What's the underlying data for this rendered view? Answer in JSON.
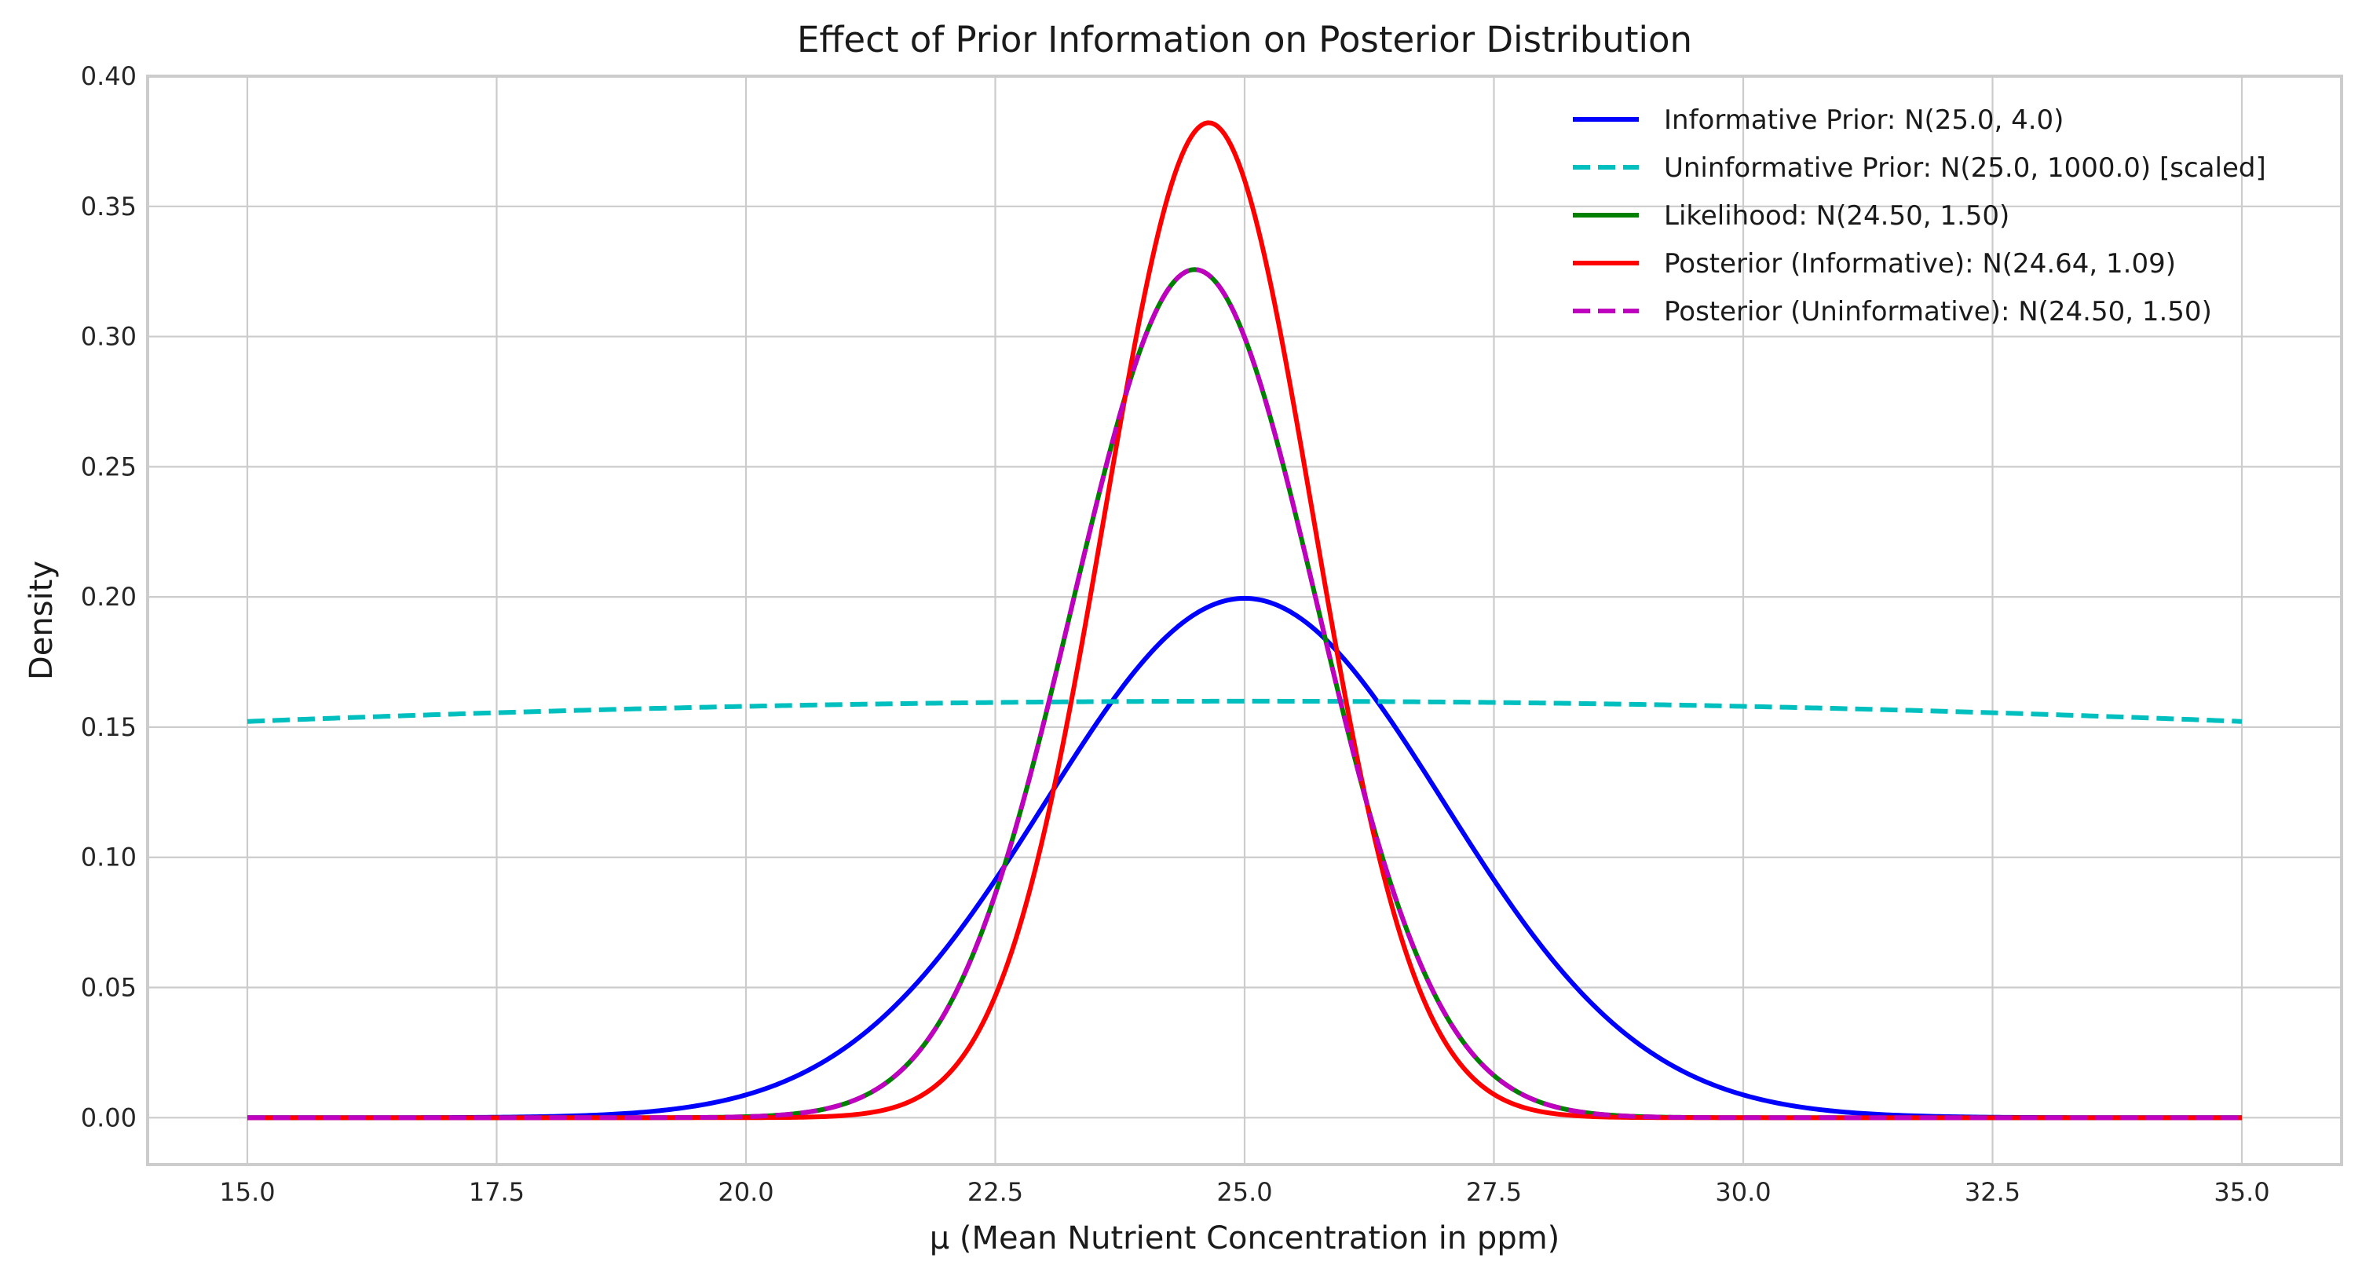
{
  "chart_data": {
    "type": "line",
    "title": "Effect of Prior Information on Posterior Distribution",
    "xlabel": "μ (Mean Nutrient Concentration in ppm)",
    "ylabel": "Density",
    "xlim": [
      14.0,
      36.0
    ],
    "ylim": [
      -0.018,
      0.4
    ],
    "x_ticks": [
      "15.0",
      "17.5",
      "20.0",
      "22.5",
      "25.0",
      "27.5",
      "30.0",
      "32.5",
      "35.0"
    ],
    "y_ticks": [
      "0.00",
      "0.05",
      "0.10",
      "0.15",
      "0.20",
      "0.25",
      "0.30",
      "0.35",
      "0.40"
    ],
    "grid": true,
    "legend_position": "top-right",
    "x_range": [
      15.0,
      35.0
    ],
    "series": [
      {
        "name": "Informative Prior: N(25.0, 4.0)",
        "distribution": "normal",
        "mean": 25.0,
        "variance": 4.0,
        "scale": 1.0,
        "color": "#0000ff",
        "dash": "solid"
      },
      {
        "name": "Uninformative Prior: N(25.0, 1000.0) [scaled]",
        "distribution": "normal",
        "mean": 25.0,
        "variance": 1000.0,
        "scale": 12.68,
        "color": "#00bfbf",
        "dash": "dashed"
      },
      {
        "name": "Likelihood: N(24.50, 1.50)",
        "distribution": "normal",
        "mean": 24.5,
        "variance": 1.5,
        "scale": 1.0,
        "color": "#008000",
        "dash": "solid"
      },
      {
        "name": "Posterior (Informative): N(24.64, 1.09)",
        "distribution": "normal",
        "mean": 24.64,
        "variance": 1.09,
        "scale": 1.0,
        "color": "#ff0000",
        "dash": "solid"
      },
      {
        "name": "Posterior (Uninformative): N(24.50, 1.50)",
        "distribution": "normal",
        "mean": 24.5,
        "variance": 1.5,
        "scale": 1.0,
        "color": "#bf00bf",
        "dash": "dashed"
      }
    ]
  }
}
